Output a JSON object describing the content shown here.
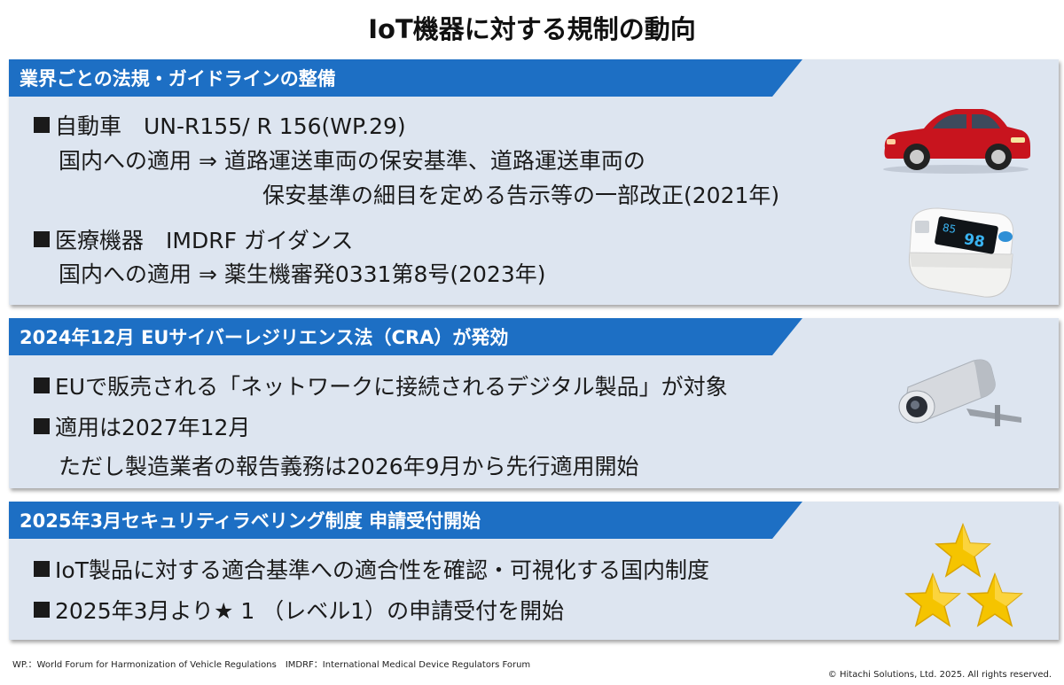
{
  "title": "IoT機器に対する規制の動向",
  "section1": {
    "banner": "業界ごとの法規・ガイドラインの整備",
    "item1_head": "自動車　UN-R155/ R 156(WP.29)",
    "item1_line2": "国内への適用 ⇒ 道路運送車両の保安基準、道路運送車両の",
    "item1_line3": "保安基準の細目を定める告示等の一部改正(2021年)",
    "item2_head": "医療機器　IMDRF ガイダンス",
    "item2_line2": "国内への適用 ⇒ 薬生機審発0331第8号(2023年)",
    "oximeter_reading1": "98",
    "oximeter_reading2": "85"
  },
  "section2": {
    "banner": "2024年12月 EUサイバーレジリエンス法（CRA）が発効",
    "item1": "EUで販売される「ネットワークに接続されるデジタル製品」が対象",
    "item2": "適用は2027年12月",
    "item2_line2": "ただし製造業者の報告義務は2026年9月から先行適用開始"
  },
  "section3": {
    "banner": "2025年3月セキュリティラベリング制度 申請受付開始",
    "item1": "IoT製品に対する適合基準への適合性を確認・可視化する国内制度",
    "item2": "2025年3月より★ 1 （レベル1）の申請受付を開始"
  },
  "footnote": "WP.：World Forum for Harmonization of Vehicle Regulations　IMDRF：International Medical Device Regulators Forum",
  "copyright": "© Hitachi Solutions, Ltd. 2025. All rights reserved.",
  "colors": {
    "banner": "#1d6fc4",
    "panel": "#dde5f0",
    "star": "#f5c400",
    "car": "#c8141e"
  },
  "icons": [
    "car-icon",
    "pulse-oximeter-icon",
    "security-camera-icon",
    "star-icon"
  ]
}
